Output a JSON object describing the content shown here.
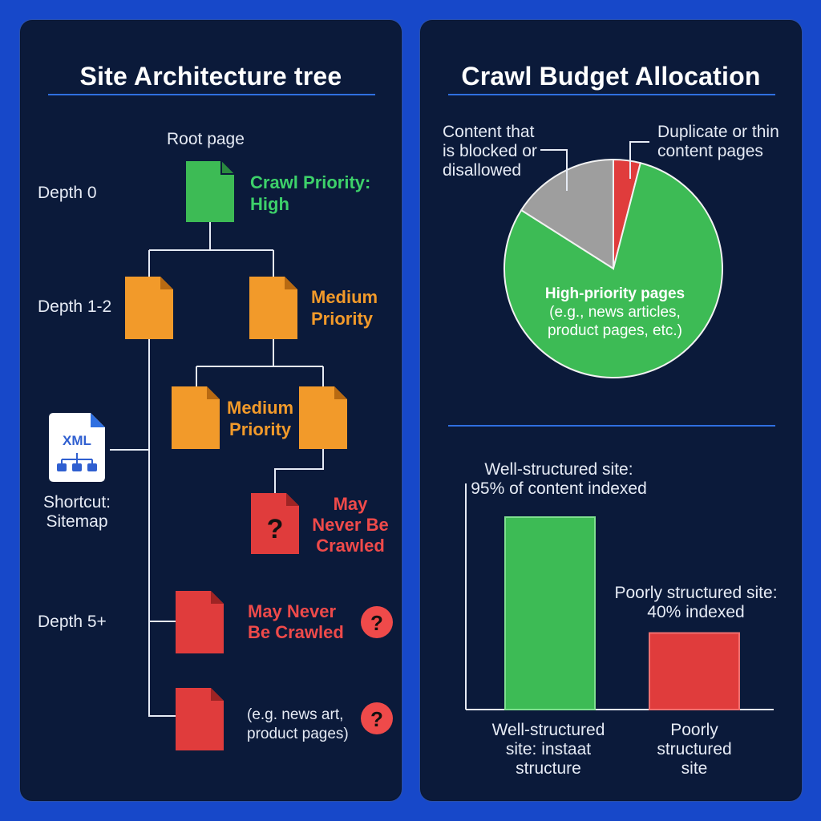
{
  "tree": {
    "title": "Site Architecture tree",
    "root_label": "Root page",
    "depth_0": "Depth 0",
    "depth_1_2": "Depth 1-2",
    "depth_5_plus": "Depth 5+",
    "priority_high": [
      "Crawl Priority:",
      "High"
    ],
    "priority_medium_1": [
      "Medium",
      "Priority"
    ],
    "priority_medium_2": [
      "Medium",
      "Priority"
    ],
    "never_crawled_1": [
      "May",
      "Never Be",
      "Crawled"
    ],
    "never_crawled_2": [
      "May Never",
      "Be Crawled"
    ],
    "example_note": [
      "(e.g. news art,",
      "product pages)"
    ],
    "sitemap_badge": "XML",
    "sitemap_label": [
      "Shortcut:",
      "Sitemap"
    ],
    "question_mark": "?",
    "colors": {
      "high": "#3dbb55",
      "medium": "#f29a2a",
      "low": "#e03c3c"
    }
  },
  "crawl": {
    "title": "Crawl Budget Allocation",
    "pie": {
      "type": "pie",
      "slices": [
        {
          "label": "High-priority pages",
          "sublabel": [
            "(e.g., news articles,",
            "product pages, etc.)"
          ],
          "value": 80,
          "color": "#3dbb55"
        },
        {
          "label": "Content that is blocked or disallowed",
          "lines": [
            "Content that",
            "is blocked or",
            "disallowed"
          ],
          "value": 16,
          "color": "#9e9e9e"
        },
        {
          "label": "Duplicate or thin content pages",
          "lines": [
            "Duplicate or thin",
            "content pages"
          ],
          "value": 4,
          "color": "#e03c3c"
        }
      ]
    },
    "bar": {
      "type": "bar",
      "categories": [
        "Well-structured site: instaat structure",
        "Poorly structured site"
      ],
      "category_lines": [
        [
          "Well-structured",
          "site: instaat",
          "structure"
        ],
        [
          "Poorly",
          "structured",
          "site"
        ]
      ],
      "values": [
        95,
        40
      ],
      "ylim": [
        0,
        100
      ],
      "colors": [
        "#3dbb55",
        "#e03c3c"
      ],
      "annotations": [
        [
          "Well-structured site:",
          "95% of content indexed"
        ],
        [
          "Poorly structured site:",
          "40% indexed"
        ]
      ]
    }
  }
}
